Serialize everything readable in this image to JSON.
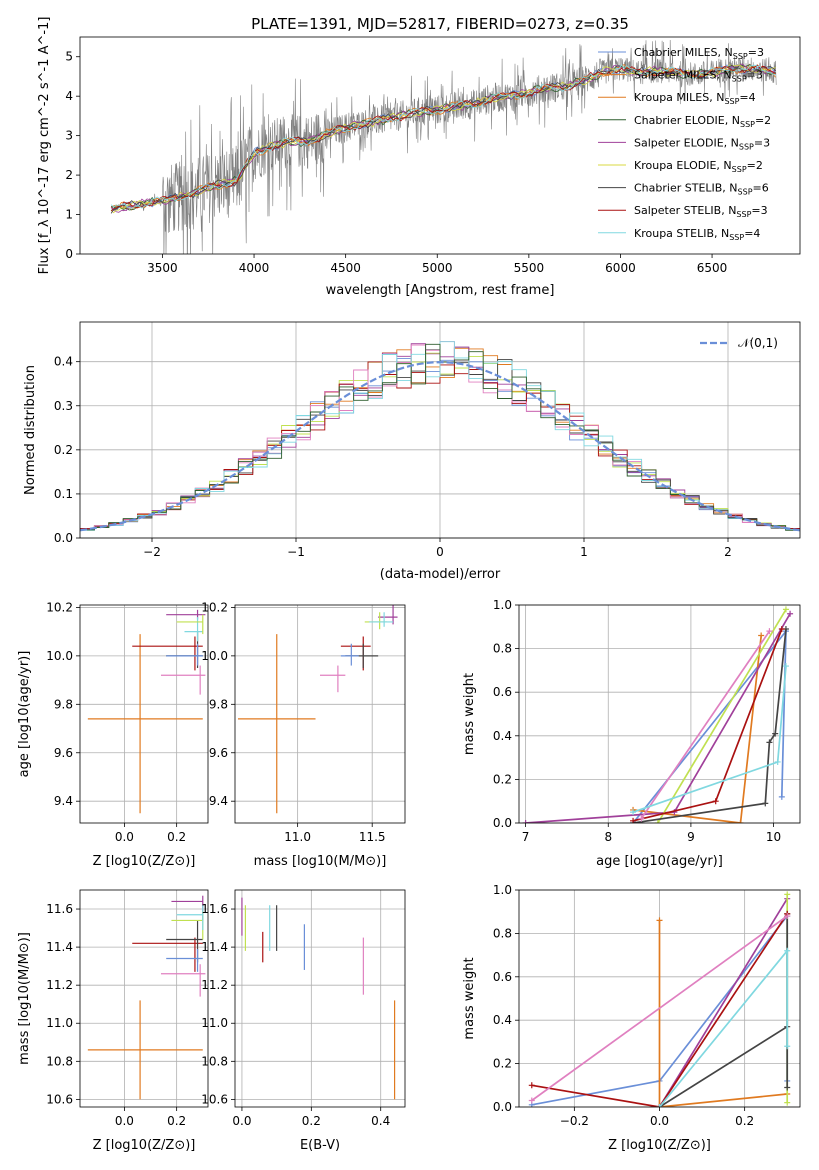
{
  "title": "PLATE=1391, MJD=52817, FIBERID=0273, z=0.35",
  "colors": [
    "#6a8fd8",
    "#e07a20",
    "#a0409a",
    "#c0e050",
    "#444444",
    "#aa1111",
    "#e080c0",
    "#80d8e0",
    "#888888"
  ],
  "chart_data": [
    {
      "id": "spectrum",
      "type": "line",
      "xlabel": "wavelength [Angstrom, rest frame]",
      "ylabel": "Flux [f_λ 10^-17 erg cm^-2 s^-1 A^-1]",
      "xlim": [
        3050,
        6980
      ],
      "ylim": [
        0,
        5.5
      ],
      "xticks": [
        3500,
        4000,
        4500,
        5000,
        5500,
        6000,
        6500
      ],
      "yticks": [
        0,
        1,
        2,
        3,
        4,
        5
      ],
      "data_color": "#808080",
      "data_range": [
        3220,
        6850
      ],
      "continuum": [
        [
          3220,
          1.15
        ],
        [
          3300,
          1.2
        ],
        [
          3400,
          1.28
        ],
        [
          3500,
          1.35
        ],
        [
          3600,
          1.45
        ],
        [
          3700,
          1.6
        ],
        [
          3800,
          1.75
        ],
        [
          3900,
          1.85
        ],
        [
          4000,
          2.55
        ],
        [
          4100,
          2.75
        ],
        [
          4200,
          2.85
        ],
        [
          4300,
          2.85
        ],
        [
          4400,
          3.05
        ],
        [
          4500,
          3.2
        ],
        [
          4600,
          3.3
        ],
        [
          4700,
          3.4
        ],
        [
          4800,
          3.5
        ],
        [
          4900,
          3.6
        ],
        [
          5000,
          3.65
        ],
        [
          5100,
          3.75
        ],
        [
          5200,
          3.8
        ],
        [
          5300,
          3.95
        ],
        [
          5400,
          4.0
        ],
        [
          5500,
          4.1
        ],
        [
          5600,
          4.2
        ],
        [
          5700,
          4.25
        ],
        [
          5800,
          4.4
        ],
        [
          5900,
          4.6
        ],
        [
          6000,
          4.7
        ],
        [
          6100,
          4.6
        ],
        [
          6200,
          4.65
        ],
        [
          6300,
          4.6
        ],
        [
          6400,
          4.55
        ],
        [
          6500,
          4.6
        ],
        [
          6600,
          4.7
        ],
        [
          6700,
          4.7
        ],
        [
          6800,
          4.65
        ],
        [
          6850,
          4.6
        ]
      ],
      "legend": [
        {
          "label": "Chabrier MILES, N",
          "sub": "SSP",
          "suffix": "=3",
          "color": "#6a8fd8"
        },
        {
          "label": "Salpeter MILES, N",
          "sub": "SSP",
          "suffix": "=3",
          "color": "#e07a20"
        },
        {
          "label": "Kroupa MILES, N",
          "sub": "SSP",
          "suffix": "=4",
          "color": "#e07a20"
        },
        {
          "label": "Chabrier ELODIE, N",
          "sub": "SSP",
          "suffix": "=2",
          "color": "#2e5e2e"
        },
        {
          "label": "Salpeter ELODIE, N",
          "sub": "SSP",
          "suffix": "=3",
          "color": "#a0409a"
        },
        {
          "label": "Kroupa ELODIE, N",
          "sub": "SSP",
          "suffix": "=2",
          "color": "#d8d840"
        },
        {
          "label": "Chabrier STELIB, N",
          "sub": "SSP",
          "suffix": "=6",
          "color": "#444444"
        },
        {
          "label": "Salpeter STELIB, N",
          "sub": "SSP",
          "suffix": "=3",
          "color": "#aa1111"
        },
        {
          "label": "Kroupa STELIB, N",
          "sub": "SSP",
          "suffix": "=4",
          "color": "#80d8e0"
        }
      ]
    },
    {
      "id": "residuals",
      "type": "histogram",
      "xlabel": "(data-model)/error",
      "ylabel": "Normed distribution",
      "xlim": [
        -2.5,
        2.5
      ],
      "ylim": [
        0,
        0.49
      ],
      "xticks": [
        -2,
        -1,
        0,
        1,
        2
      ],
      "yticks": [
        0,
        0.1,
        0.2,
        0.3,
        0.4
      ],
      "bin_width": 0.1,
      "legend": "𝒩(0,1)",
      "gauss_color": "#6a8fd8"
    },
    {
      "id": "age-vs-Z",
      "type": "errorbar",
      "xlabel": "Z [log10(Z/Z⊙)]",
      "ylabel": "age [log10(age/yr)]",
      "xlim": [
        -0.17,
        0.32
      ],
      "ylim": [
        9.31,
        10.21
      ],
      "xticks": [
        0.0,
        0.2
      ],
      "yticks": [
        9.4,
        9.6,
        9.8,
        10.0,
        10.2
      ],
      "points": [
        {
          "x": 0.06,
          "y": 9.74,
          "xe": [
            0.2,
            0.24
          ],
          "ye": [
            0.39,
            0.35
          ],
          "color": "#e07a20"
        },
        {
          "x": 0.27,
          "y": 10.04,
          "xe": [
            0.24,
            0.03
          ],
          "ye": [
            0.1,
            0.04
          ],
          "color": "#aa1111"
        },
        {
          "x": 0.28,
          "y": 10.0,
          "xe": [
            0.12,
            0.02
          ],
          "ye": [
            0.05,
            0.1
          ],
          "color": "#444444"
        },
        {
          "x": 0.28,
          "y": 10.0,
          "xe": [
            0.12,
            0.02
          ],
          "ye": [
            0.04,
            0.05
          ],
          "color": "#6a8fd8"
        },
        {
          "x": 0.28,
          "y": 10.17,
          "xe": [
            0.12,
            0.03
          ],
          "ye": [
            0.02,
            0.02
          ],
          "color": "#a0409a"
        },
        {
          "x": 0.29,
          "y": 9.92,
          "xe": [
            0.15,
            0.02
          ],
          "ye": [
            0.08,
            0.04
          ],
          "color": "#e080c0"
        },
        {
          "x": 0.28,
          "y": 10.1,
          "xe": [
            0.05,
            0.02
          ],
          "ye": [
            0.04,
            0.06
          ],
          "color": "#80d8e0"
        },
        {
          "x": 0.3,
          "y": 10.14,
          "xe": [
            0.1,
            0.0
          ],
          "ye": [
            0.05,
            0.03
          ],
          "color": "#c0e050"
        }
      ]
    },
    {
      "id": "age-vs-mass",
      "type": "errorbar",
      "xlabel": "mass [log10(M/M⊙)]",
      "ylabel": "",
      "xlim": [
        10.58,
        11.72
      ],
      "ylim": [
        9.31,
        10.21
      ],
      "xticks": [
        11.0,
        11.5
      ],
      "yticks": [
        9.4,
        9.6,
        9.8,
        10.0,
        10.2
      ],
      "points": [
        {
          "x": 10.86,
          "y": 9.74,
          "xe": [
            0.26,
            0.26
          ],
          "ye": [
            0.39,
            0.35
          ],
          "color": "#e07a20"
        },
        {
          "x": 11.44,
          "y": 10.04,
          "xe": [
            0.15,
            0.05
          ],
          "ye": [
            0.1,
            0.04
          ],
          "color": "#aa1111"
        },
        {
          "x": 11.44,
          "y": 10.0,
          "xe": [
            0.12,
            0.1
          ],
          "ye": [
            0.05,
            0.05
          ],
          "color": "#444444"
        },
        {
          "x": 11.36,
          "y": 10.0,
          "xe": [
            0.07,
            0.05
          ],
          "ye": [
            0.04,
            0.05
          ],
          "color": "#6a8fd8"
        },
        {
          "x": 11.64,
          "y": 10.16,
          "xe": [
            0.1,
            0.03
          ],
          "ye": [
            0.03,
            0.05
          ],
          "color": "#a0409a"
        },
        {
          "x": 11.27,
          "y": 9.92,
          "xe": [
            0.12,
            0.05
          ],
          "ye": [
            0.07,
            0.04
          ],
          "color": "#e080c0"
        },
        {
          "x": 11.55,
          "y": 10.14,
          "xe": [
            0.1,
            0.05
          ],
          "ye": [
            0.03,
            0.04
          ],
          "color": "#c0e050"
        },
        {
          "x": 11.58,
          "y": 10.14,
          "xe": [
            0.1,
            0.06
          ],
          "ye": [
            0.02,
            0.04
          ],
          "color": "#80d8e0"
        }
      ]
    },
    {
      "id": "weight-vs-age",
      "type": "line",
      "xlabel": "age [log10(age/yr)]",
      "ylabel": "mass weight",
      "xlim": [
        6.92,
        10.32
      ],
      "ylim": [
        0,
        1.0
      ],
      "xticks": [
        7,
        8,
        9,
        10
      ],
      "yticks": [
        0.0,
        0.2,
        0.4,
        0.6,
        0.8,
        1.0
      ],
      "series": [
        {
          "color": "#6a8fd8",
          "points": [
            [
              8.3,
              0.0
            ],
            [
              10.15,
              0.88
            ],
            [
              10.1,
              0.12
            ]
          ]
        },
        {
          "color": "#e07a20",
          "points": [
            [
              8.3,
              0.06
            ],
            [
              9.6,
              0.0
            ],
            [
              9.85,
              0.86
            ]
          ]
        },
        {
          "color": "#a0409a",
          "points": [
            [
              7.0,
              0.0
            ],
            [
              8.8,
              0.05
            ],
            [
              10.2,
              0.96
            ]
          ]
        },
        {
          "color": "#c0e050",
          "points": [
            [
              8.6,
              0.0
            ],
            [
              10.15,
              0.98
            ]
          ]
        },
        {
          "color": "#444444",
          "points": [
            [
              8.3,
              0.0
            ],
            [
              9.9,
              0.09
            ],
            [
              9.95,
              0.37
            ],
            [
              10.02,
              0.41
            ],
            [
              10.15,
              0.89
            ]
          ]
        },
        {
          "color": "#aa1111",
          "points": [
            [
              8.3,
              0.01
            ],
            [
              9.3,
              0.1
            ],
            [
              10.1,
              0.89
            ]
          ]
        },
        {
          "color": "#e080c0",
          "points": [
            [
              8.4,
              0.02
            ],
            [
              9.95,
              0.88
            ]
          ]
        },
        {
          "color": "#80d8e0",
          "points": [
            [
              8.3,
              0.05
            ],
            [
              10.05,
              0.28
            ],
            [
              10.15,
              0.72
            ]
          ]
        }
      ]
    },
    {
      "id": "mass-vs-Z",
      "type": "errorbar",
      "xlabel": "Z [log10(Z/Z⊙)]",
      "ylabel": "mass [log10(M/M⊙)]",
      "xlim": [
        -0.17,
        0.32
      ],
      "ylim": [
        10.56,
        11.7
      ],
      "xticks": [
        0.0,
        0.2
      ],
      "yticks": [
        10.6,
        10.8,
        11.0,
        11.2,
        11.4,
        11.6
      ],
      "points": [
        {
          "x": 0.06,
          "y": 10.86,
          "xe": [
            0.2,
            0.24
          ],
          "ye": [
            0.26,
            0.26
          ],
          "color": "#e07a20"
        },
        {
          "x": 0.27,
          "y": 11.42,
          "xe": [
            0.24,
            0.03
          ],
          "ye": [
            0.15,
            0.03
          ],
          "color": "#aa1111"
        },
        {
          "x": 0.28,
          "y": 11.44,
          "xe": [
            0.12,
            0.02
          ],
          "ye": [
            0.12,
            0.1
          ],
          "color": "#444444"
        },
        {
          "x": 0.28,
          "y": 11.34,
          "xe": [
            0.12,
            0.02
          ],
          "ye": [
            0.07,
            0.05
          ],
          "color": "#6a8fd8"
        },
        {
          "x": 0.3,
          "y": 11.64,
          "xe": [
            0.12,
            0.0
          ],
          "ye": [
            0.1,
            0.03
          ],
          "color": "#a0409a"
        },
        {
          "x": 0.29,
          "y": 11.26,
          "xe": [
            0.15,
            0.02
          ],
          "ye": [
            0.12,
            0.05
          ],
          "color": "#e080c0"
        },
        {
          "x": 0.3,
          "y": 11.54,
          "xe": [
            0.12,
            0.0
          ],
          "ye": [
            0.1,
            0.05
          ],
          "color": "#c0e050"
        },
        {
          "x": 0.3,
          "y": 11.57,
          "xe": [
            0.1,
            0.0
          ],
          "ye": [
            0.08,
            0.05
          ],
          "color": "#80d8e0"
        }
      ]
    },
    {
      "id": "mass-vs-EBV",
      "type": "errorbar",
      "xlabel": "E(B-V)",
      "ylabel": "",
      "xlim": [
        -0.02,
        0.47
      ],
      "ylim": [
        10.56,
        11.7
      ],
      "xticks": [
        0.0,
        0.2,
        0.4
      ],
      "yticks": [
        10.6,
        10.8,
        11.0,
        11.2,
        11.4,
        11.6
      ],
      "points": [
        {
          "x": 0.44,
          "y": 10.86,
          "xe": [
            0,
            0
          ],
          "ye": [
            0.26,
            0.26
          ],
          "color": "#e07a20"
        },
        {
          "x": 0.06,
          "y": 11.4,
          "xe": [
            0,
            0
          ],
          "ye": [
            0.08,
            0.08
          ],
          "color": "#aa1111"
        },
        {
          "x": 0.1,
          "y": 11.5,
          "xe": [
            0,
            0
          ],
          "ye": [
            0.12,
            0.12
          ],
          "color": "#444444"
        },
        {
          "x": 0.18,
          "y": 11.4,
          "xe": [
            0,
            0
          ],
          "ye": [
            0.12,
            0.12
          ],
          "color": "#6a8fd8"
        },
        {
          "x": 0.0,
          "y": 11.56,
          "xe": [
            0,
            0
          ],
          "ye": [
            0.1,
            0.1
          ],
          "color": "#a0409a"
        },
        {
          "x": 0.35,
          "y": 11.3,
          "xe": [
            0,
            0
          ],
          "ye": [
            0.15,
            0.15
          ],
          "color": "#e080c0"
        },
        {
          "x": 0.01,
          "y": 11.5,
          "xe": [
            0,
            0
          ],
          "ye": [
            0.12,
            0.12
          ],
          "color": "#c0e050"
        },
        {
          "x": 0.08,
          "y": 11.5,
          "xe": [
            0,
            0
          ],
          "ye": [
            0.12,
            0.12
          ],
          "color": "#80d8e0"
        }
      ]
    },
    {
      "id": "weight-vs-Z",
      "type": "line",
      "xlabel": "Z [log10(Z/Z⊙)]",
      "ylabel": "mass weight",
      "xlim": [
        -0.33,
        0.33
      ],
      "ylim": [
        0,
        1.0
      ],
      "xticks": [
        -0.2,
        0.0,
        0.2
      ],
      "yticks": [
        0.0,
        0.2,
        0.4,
        0.6,
        0.8,
        1.0
      ],
      "series": [
        {
          "color": "#6a8fd8",
          "points": [
            [
              -0.3,
              0.01
            ],
            [
              0.0,
              0.12
            ],
            [
              0.3,
              0.88
            ],
            [
              0.3,
              0.12
            ]
          ]
        },
        {
          "color": "#e07a20",
          "points": [
            [
              0.0,
              0.86
            ],
            [
              0.0,
              0.0
            ],
            [
              0.3,
              0.06
            ]
          ]
        },
        {
          "color": "#a0409a",
          "points": [
            [
              0.0,
              0.0
            ],
            [
              0.3,
              0.96
            ]
          ]
        },
        {
          "color": "#c0e050",
          "points": [
            [
              0.3,
              0.02
            ],
            [
              0.3,
              0.98
            ]
          ]
        },
        {
          "color": "#444444",
          "points": [
            [
              0.0,
              0.0
            ],
            [
              0.3,
              0.37
            ],
            [
              0.3,
              0.09
            ],
            [
              0.3,
              0.89
            ]
          ]
        },
        {
          "color": "#aa1111",
          "points": [
            [
              -0.3,
              0.1
            ],
            [
              0.0,
              0.0
            ],
            [
              0.3,
              0.89
            ]
          ]
        },
        {
          "color": "#e080c0",
          "points": [
            [
              -0.3,
              0.03
            ],
            [
              0.3,
              0.88
            ]
          ]
        },
        {
          "color": "#80d8e0",
          "points": [
            [
              0.0,
              0.0
            ],
            [
              0.3,
              0.72
            ],
            [
              0.3,
              0.28
            ]
          ]
        }
      ]
    }
  ]
}
